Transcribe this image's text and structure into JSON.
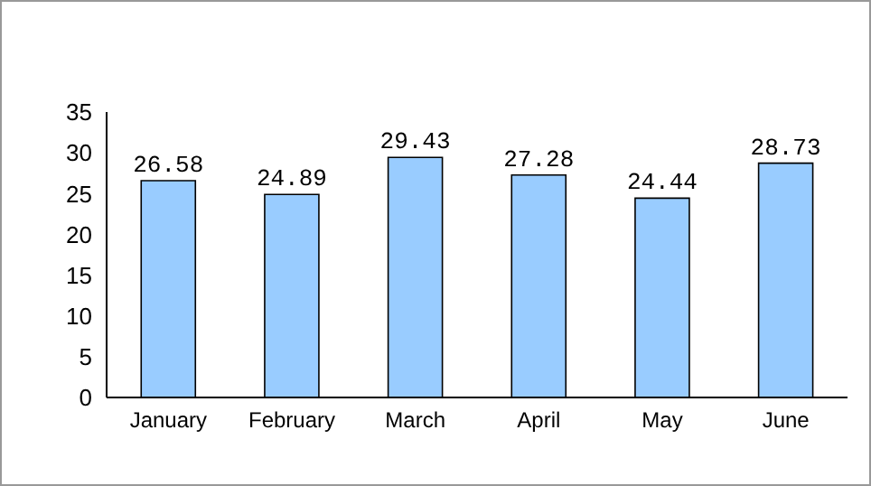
{
  "chart_data": {
    "type": "bar",
    "categories": [
      "January",
      "February",
      "March",
      "April",
      "May",
      "June"
    ],
    "values": [
      26.58,
      24.89,
      29.43,
      27.28,
      24.44,
      28.73
    ],
    "color": "#99ccff",
    "ylim": [
      0,
      35
    ],
    "yticks": [
      0,
      5,
      10,
      15,
      20,
      25,
      30,
      35
    ],
    "grid": false,
    "data_labels": true,
    "legend": false
  }
}
